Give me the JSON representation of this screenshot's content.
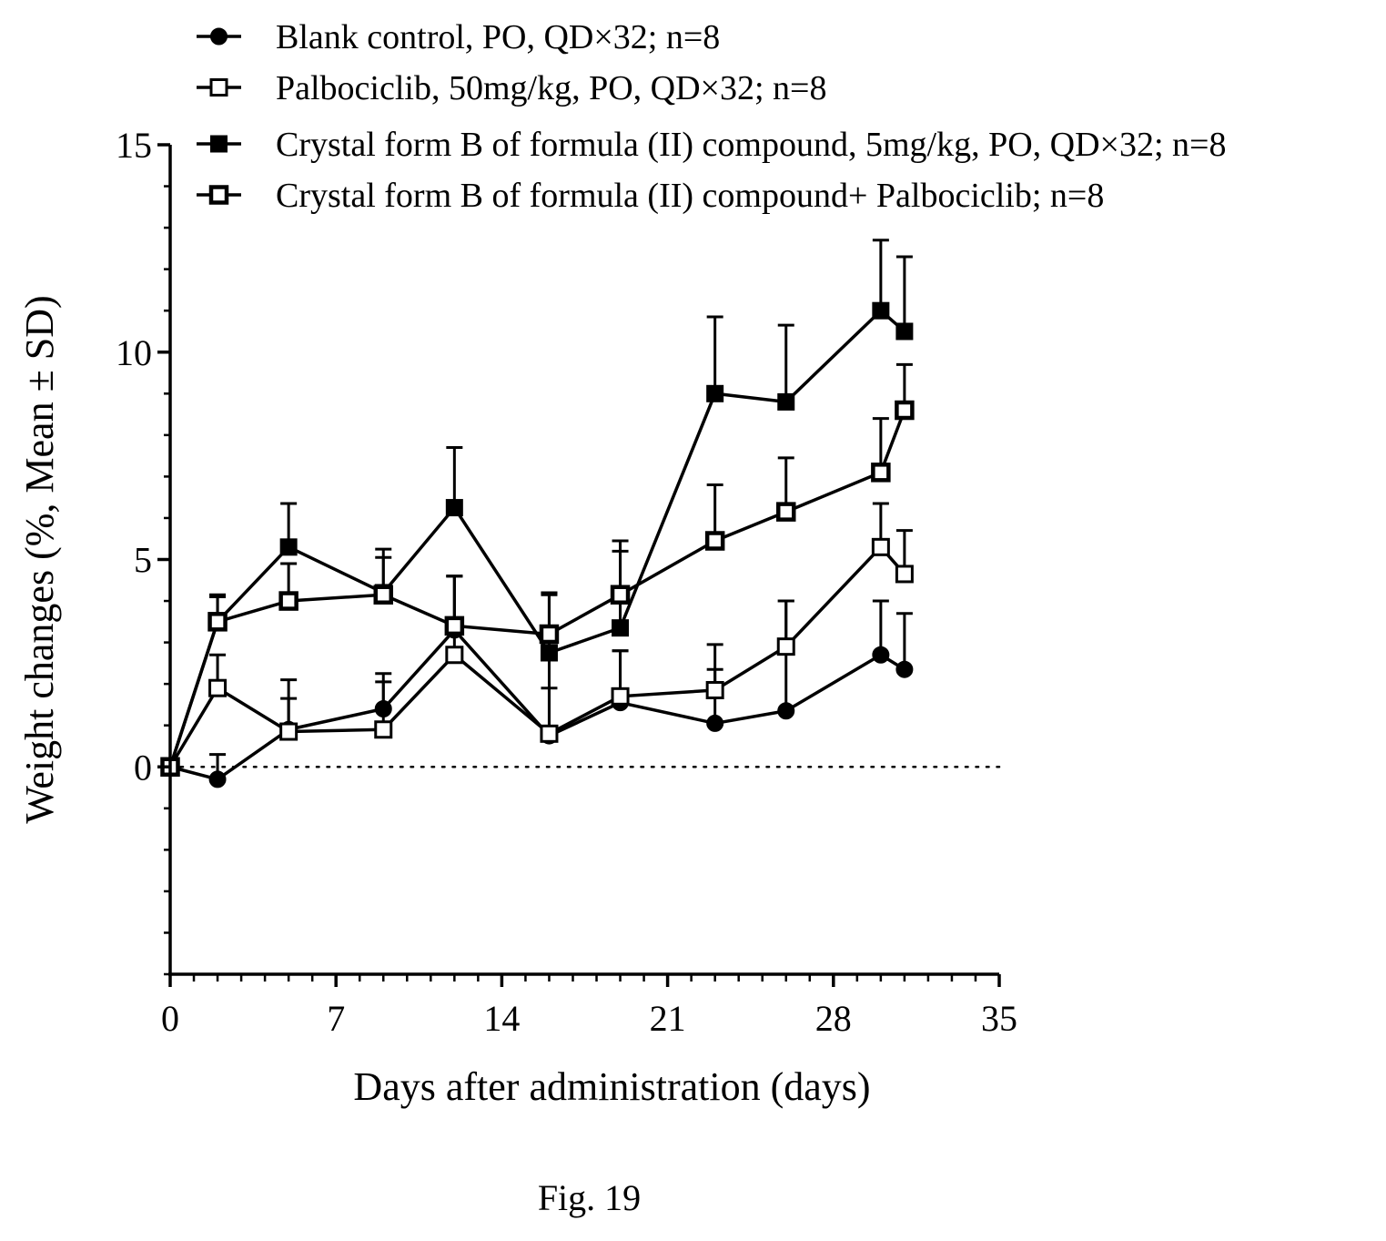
{
  "caption": "Fig. 19",
  "chart_data": {
    "type": "line",
    "xlabel": "Days after administration (days)",
    "ylabel": "Weight changes (%, Mean ± SD)",
    "xlim": [
      0,
      35
    ],
    "ylim": [
      -5,
      15
    ],
    "xticks": [
      "0",
      "7",
      "14",
      "21",
      "28",
      "35"
    ],
    "yticks": [
      "0",
      "5",
      "10",
      "15"
    ],
    "reference_line": {
      "y": 0,
      "style": "dotted"
    },
    "legend_position": "top",
    "error_bars": "upper SD",
    "series": [
      {
        "name": "Blank control, PO, QD×32; n=8",
        "marker": "filled-circle",
        "x": [
          0,
          2,
          5,
          9,
          12,
          16,
          19,
          23,
          26,
          30,
          31
        ],
        "y": [
          0,
          -0.3,
          0.9,
          1.4,
          3.3,
          0.75,
          1.55,
          1.05,
          1.35,
          2.7,
          2.35
        ],
        "sd": [
          0,
          0.6,
          1.2,
          0.85,
          1.3,
          1.15,
          1.25,
          1.9,
          2.65,
          1.3,
          1.35
        ]
      },
      {
        "name": "Palbociclib, 50mg/kg, PO, QD×32; n=8",
        "marker": "open-square",
        "x": [
          0,
          2,
          5,
          9,
          12,
          16,
          19,
          23,
          26,
          30,
          31
        ],
        "y": [
          0,
          1.9,
          0.85,
          0.9,
          2.7,
          0.8,
          1.7,
          1.85,
          2.9,
          5.3,
          4.65
        ],
        "sd": [
          0,
          0.8,
          0.8,
          1.15,
          1.9,
          3.35,
          1.1,
          0.5,
          1.1,
          1.05,
          1.05
        ]
      },
      {
        "name": "Crystal form B of formula (II) compound, 5mg/kg, PO, QD×32; n=8",
        "marker": "filled-square",
        "x": [
          0,
          2,
          5,
          9,
          12,
          16,
          19,
          23,
          26,
          30,
          31
        ],
        "y": [
          0,
          3.5,
          5.3,
          4.2,
          6.25,
          2.75,
          3.35,
          9.0,
          8.8,
          11.0,
          10.5
        ],
        "sd": [
          0,
          0.6,
          1.05,
          1.05,
          1.45,
          1.45,
          2.1,
          1.85,
          1.85,
          1.7,
          1.8
        ]
      },
      {
        "name": "Crystal form B of formula (II) compound+ Palbociclib; n=8",
        "marker": "open-square-bold",
        "x": [
          0,
          2,
          5,
          9,
          12,
          16,
          19,
          23,
          26,
          30,
          31
        ],
        "y": [
          0,
          3.5,
          4.0,
          4.15,
          3.4,
          3.2,
          4.15,
          5.45,
          6.15,
          7.1,
          8.6
        ],
        "sd": [
          0,
          0.65,
          0.9,
          0.9,
          1.2,
          1.0,
          1.05,
          1.35,
          1.3,
          1.3,
          1.1
        ]
      }
    ]
  }
}
